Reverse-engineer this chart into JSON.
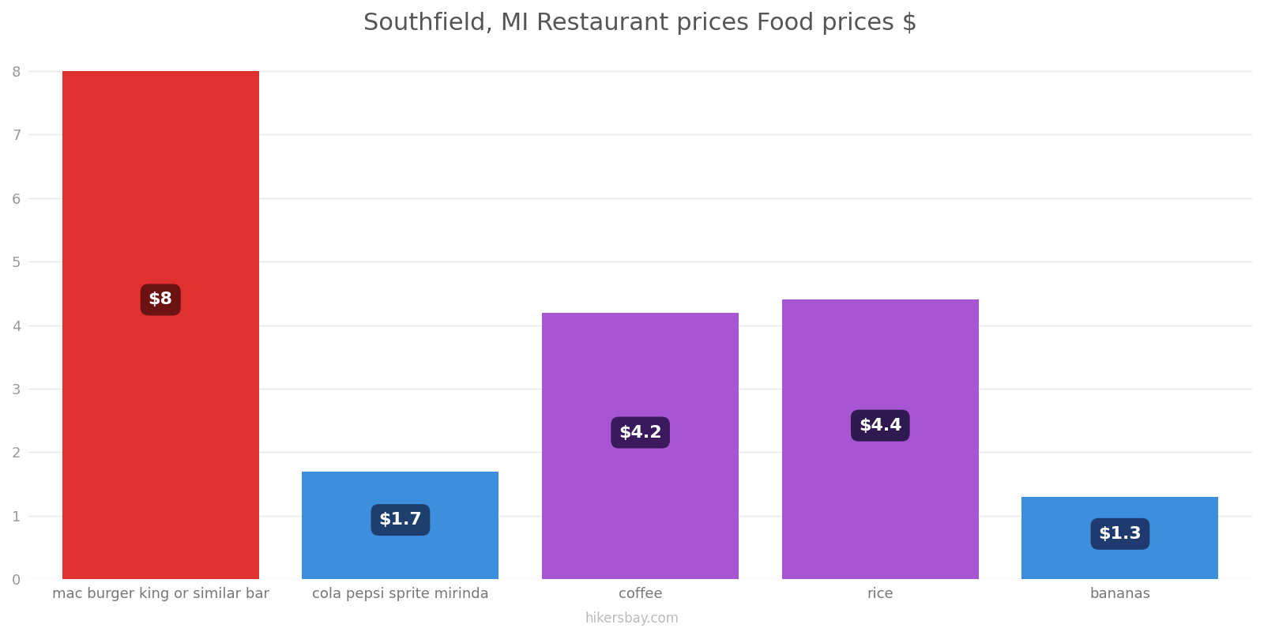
{
  "title": "Southfield, MI Restaurant prices Food prices $",
  "categories": [
    "mac burger king or similar bar",
    "cola pepsi sprite mirinda",
    "coffee",
    "rice",
    "bananas"
  ],
  "values": [
    8.0,
    1.7,
    4.2,
    4.4,
    1.3
  ],
  "bar_colors": [
    "#e03030",
    "#3d8fde",
    "#a855d4",
    "#a855d4",
    "#3d8fde"
  ],
  "label_box_colors": [
    "#6b1212",
    "#1e3f6e",
    "#3a1a5c",
    "#2e1a50",
    "#1e3a6e"
  ],
  "labels": [
    "$8",
    "$1.7",
    "$4.2",
    "$4.4",
    "$1.3"
  ],
  "ylim": [
    0,
    8.3
  ],
  "yticks": [
    0,
    1,
    2,
    3,
    4,
    5,
    6,
    7,
    8
  ],
  "watermark": "hikersbay.com",
  "title_fontsize": 22,
  "tick_fontsize": 13,
  "label_fontsize": 16,
  "background_color": "#ffffff",
  "grid_color": "#e8e8e8",
  "bar_width": 0.82
}
